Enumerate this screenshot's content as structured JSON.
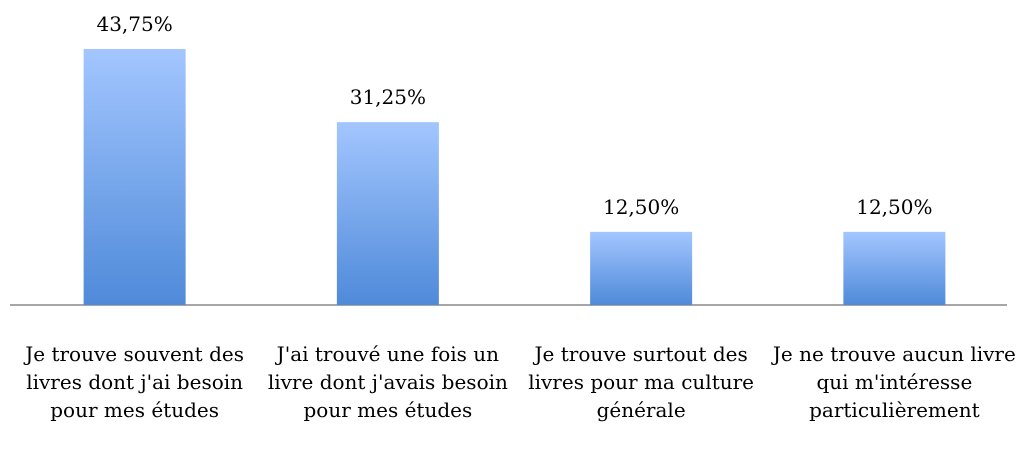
{
  "chart_data": {
    "type": "bar",
    "categories": [
      "Je trouve souvent des livres dont j'ai besoin pour mes études",
      "J'ai trouvé une fois un livre dont j'avais besoin pour mes études",
      "Je trouve surtout des livres pour ma culture générale",
      "Je ne trouve aucun livre qui m'intéresse particulièrement"
    ],
    "values": [
      43.75,
      31.25,
      12.5,
      12.5
    ],
    "value_labels": [
      "43,75%",
      "31,25%",
      "12,50%",
      "12,50%"
    ],
    "color": "#4f8ad9"
  }
}
